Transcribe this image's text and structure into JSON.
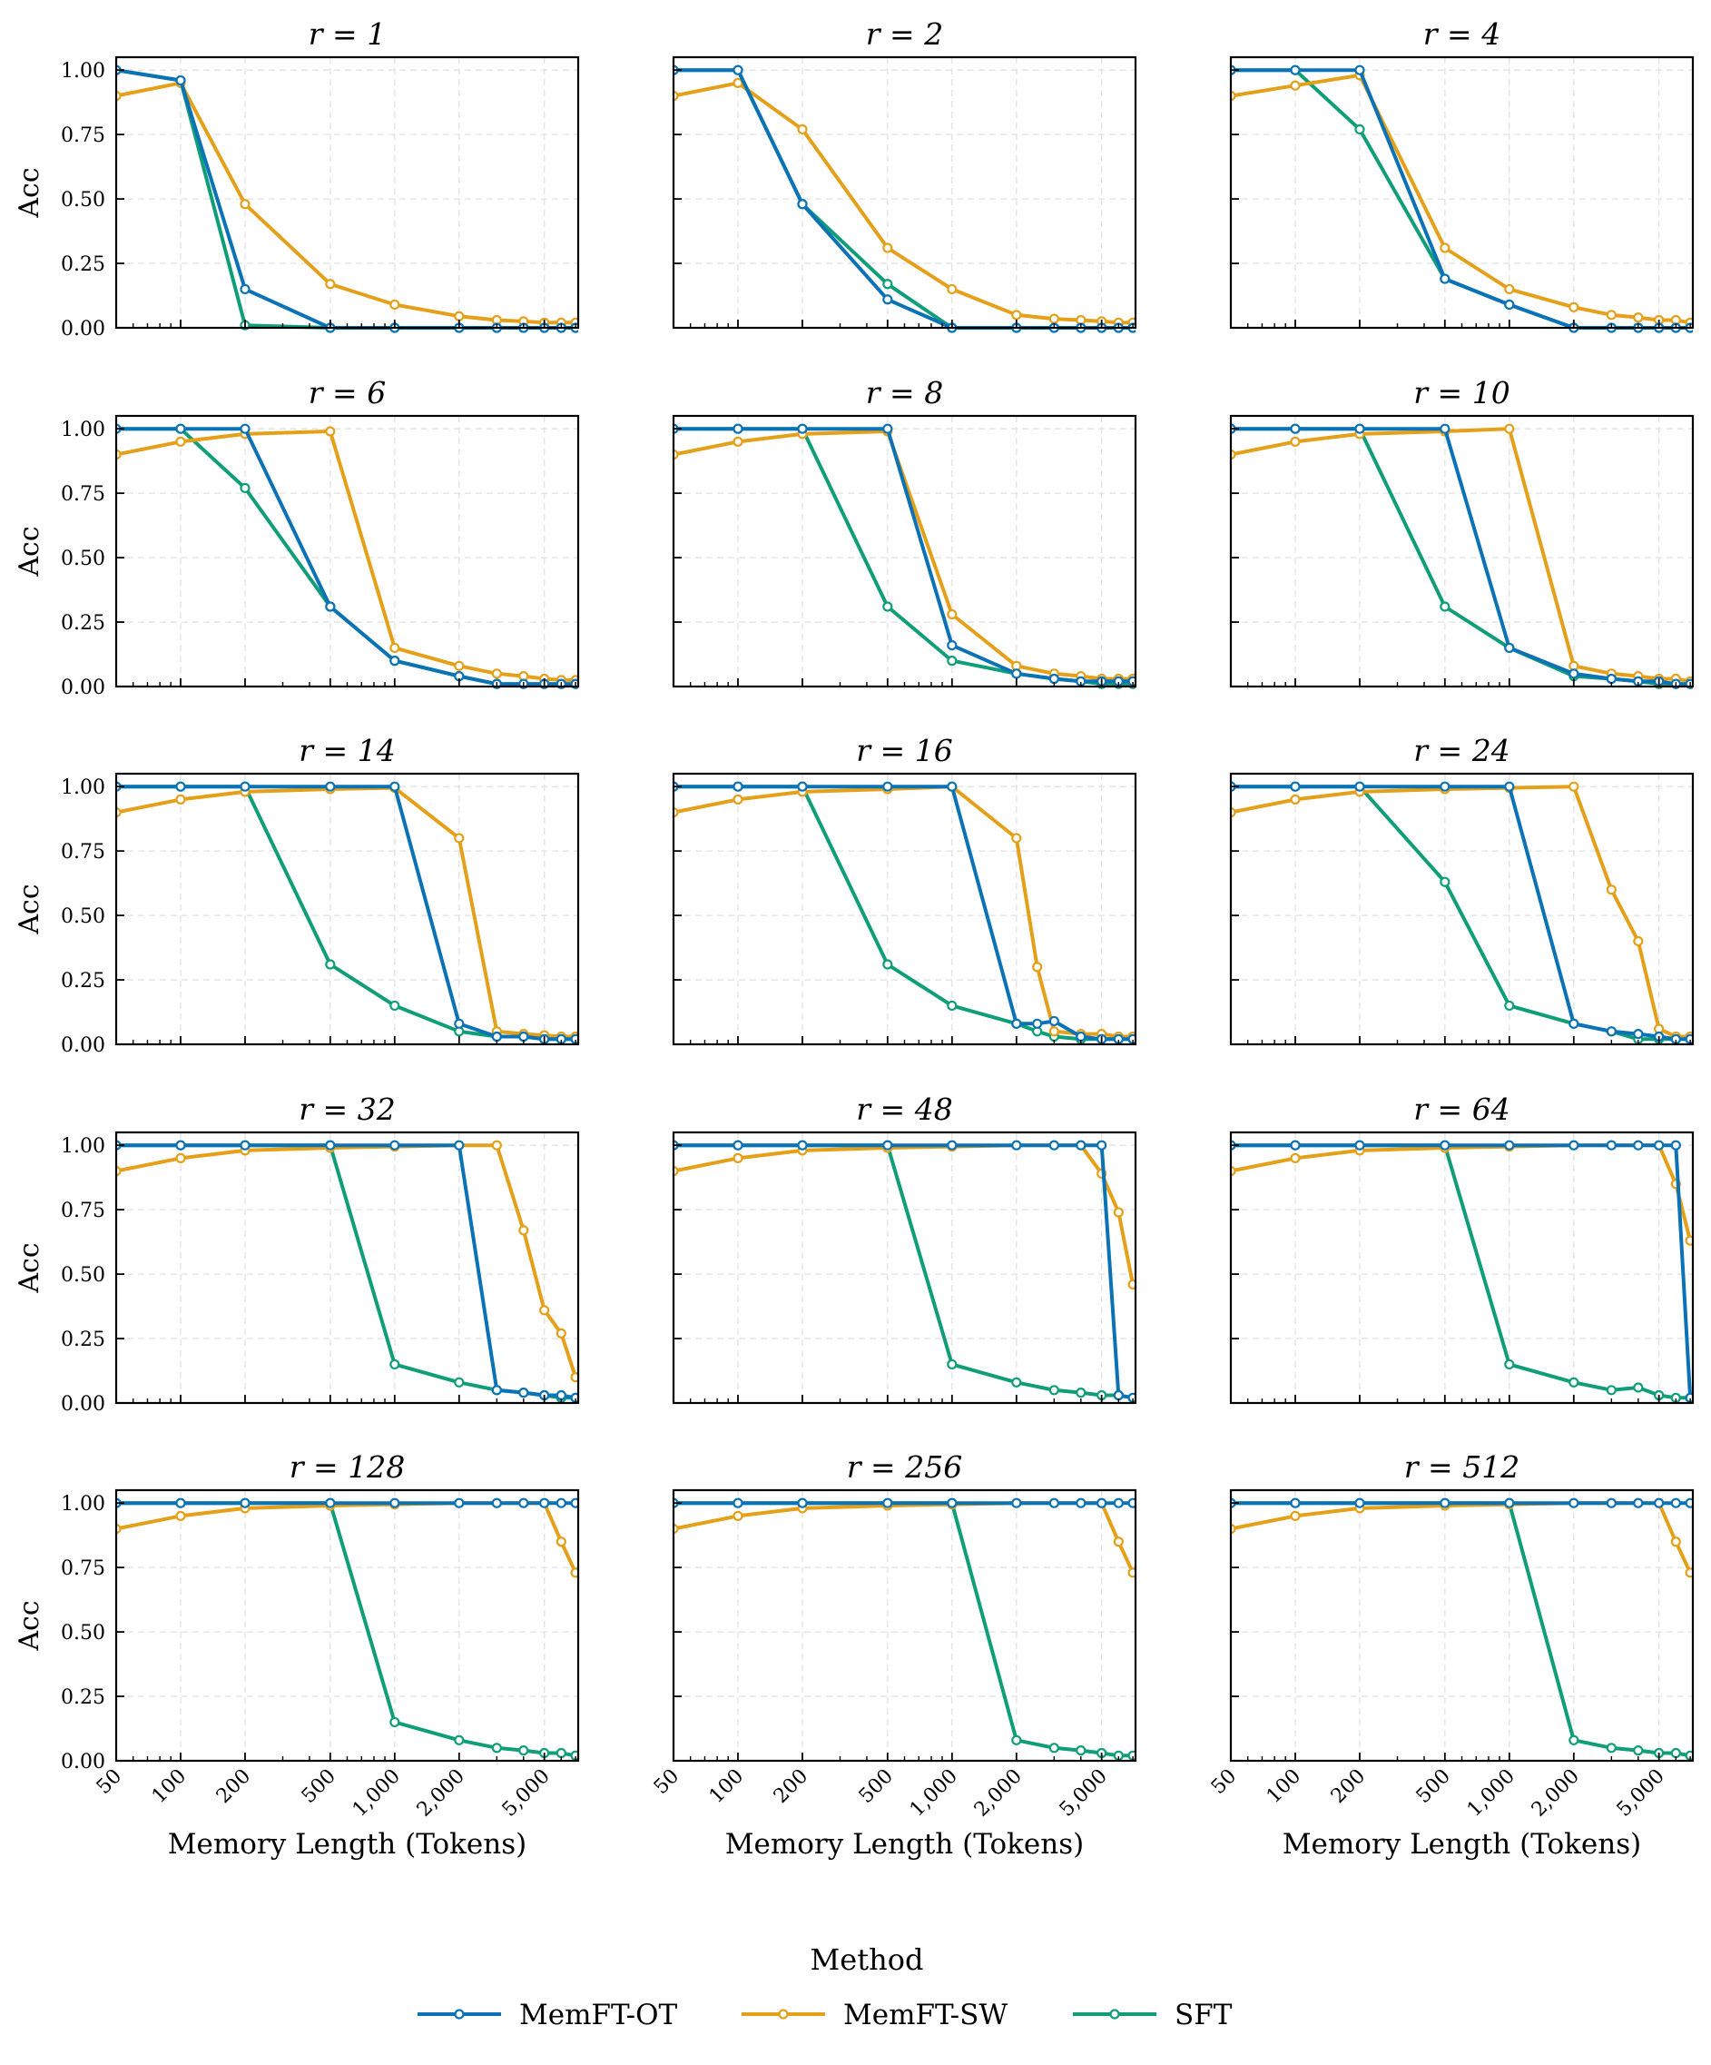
{
  "chart_data": {
    "type": "line",
    "xscale": "log",
    "xlim": [
      50,
      7200
    ],
    "ylim": [
      0,
      1.05
    ],
    "xticks": [
      50,
      100,
      200,
      500,
      1000,
      2000,
      5000
    ],
    "xticklabels": [
      "50",
      "100",
      "200",
      "500",
      "1,000",
      "2,000",
      "5,000"
    ],
    "yticks": [
      0,
      0.25,
      0.5,
      0.75,
      1.0
    ],
    "yticklabels": [
      "0.00",
      "0.25",
      "0.50",
      "0.75",
      "1.00"
    ],
    "xlabel": "Memory Length (Tokens)",
    "ylabel": "Acc",
    "grid": true,
    "legend": {
      "title": "Method",
      "position": "bottom-center",
      "items": [
        {
          "label": "MemFT-OT",
          "color": "#0b72b5"
        },
        {
          "label": "MemFT-SW",
          "color": "#e5a01a"
        },
        {
          "label": "SFT",
          "color": "#0f9e78"
        }
      ]
    },
    "panels": [
      {
        "title": "r = 1",
        "x": [
          50,
          100,
          200,
          500,
          1000,
          2000,
          3000,
          4000,
          5000,
          6000,
          7000
        ],
        "series": [
          {
            "name": "MemFT-OT",
            "values": [
              1.0,
              0.96,
              0.15,
              0.0,
              0.0,
              0.0,
              0.0,
              0.0,
              0.0,
              0.0,
              0.0
            ]
          },
          {
            "name": "MemFT-SW",
            "values": [
              0.9,
              0.95,
              0.48,
              0.17,
              0.09,
              0.045,
              0.03,
              0.025,
              0.02,
              0.02,
              0.02
            ]
          },
          {
            "name": "SFT",
            "values": [
              1.0,
              0.96,
              0.01,
              0.0,
              0.0,
              0.0,
              0.0,
              0.0,
              0.0,
              0.0,
              0.0
            ]
          }
        ]
      },
      {
        "title": "r = 2",
        "x": [
          50,
          100,
          200,
          500,
          1000,
          2000,
          3000,
          4000,
          5000,
          6000,
          7000
        ],
        "series": [
          {
            "name": "MemFT-OT",
            "values": [
              1.0,
              1.0,
              0.48,
              0.11,
              0.0,
              0.0,
              0.0,
              0.0,
              0.0,
              0.0,
              0.0
            ]
          },
          {
            "name": "MemFT-SW",
            "values": [
              0.9,
              0.95,
              0.77,
              0.31,
              0.15,
              0.05,
              0.035,
              0.03,
              0.025,
              0.02,
              0.02
            ]
          },
          {
            "name": "SFT",
            "values": [
              1.0,
              1.0,
              0.48,
              0.17,
              0.0,
              0.0,
              0.0,
              0.0,
              0.0,
              0.0,
              0.0
            ]
          }
        ]
      },
      {
        "title": "r = 4",
        "x": [
          50,
          100,
          200,
          500,
          1000,
          2000,
          3000,
          4000,
          5000,
          6000,
          7000
        ],
        "series": [
          {
            "name": "MemFT-OT",
            "values": [
              1.0,
              1.0,
              1.0,
              0.19,
              0.09,
              0.0,
              0.0,
              0.0,
              0.0,
              0.0,
              0.0
            ]
          },
          {
            "name": "MemFT-SW",
            "values": [
              0.9,
              0.94,
              0.98,
              0.31,
              0.15,
              0.08,
              0.05,
              0.04,
              0.03,
              0.03,
              0.02
            ]
          },
          {
            "name": "SFT",
            "values": [
              1.0,
              1.0,
              0.77,
              0.19,
              0.09,
              0.0,
              0.0,
              0.0,
              0.0,
              0.0,
              0.0
            ]
          }
        ]
      },
      {
        "title": "r = 6",
        "x": [
          50,
          100,
          200,
          500,
          1000,
          2000,
          3000,
          4000,
          5000,
          6000,
          7000
        ],
        "series": [
          {
            "name": "MemFT-OT",
            "values": [
              1.0,
              1.0,
              1.0,
              0.31,
              0.1,
              0.04,
              0.01,
              0.01,
              0.01,
              0.01,
              0.01
            ]
          },
          {
            "name": "MemFT-SW",
            "values": [
              0.9,
              0.95,
              0.98,
              0.99,
              0.15,
              0.08,
              0.05,
              0.04,
              0.03,
              0.025,
              0.025
            ]
          },
          {
            "name": "SFT",
            "values": [
              1.0,
              1.0,
              0.77,
              0.31,
              0.1,
              0.04,
              0.01,
              0.01,
              0.01,
              0.01,
              0.01
            ]
          }
        ]
      },
      {
        "title": "r = 8",
        "x": [
          50,
          100,
          200,
          500,
          1000,
          2000,
          3000,
          4000,
          5000,
          6000,
          7000
        ],
        "series": [
          {
            "name": "MemFT-OT",
            "values": [
              1.0,
              1.0,
              1.0,
              1.0,
              0.16,
              0.05,
              0.03,
              0.02,
              0.02,
              0.02,
              0.02
            ]
          },
          {
            "name": "MemFT-SW",
            "values": [
              0.9,
              0.95,
              0.98,
              0.99,
              0.28,
              0.08,
              0.05,
              0.04,
              0.03,
              0.03,
              0.03
            ]
          },
          {
            "name": "SFT",
            "values": [
              1.0,
              1.0,
              1.0,
              0.31,
              0.1,
              0.05,
              0.03,
              0.02,
              0.01,
              0.01,
              0.01
            ]
          }
        ]
      },
      {
        "title": "r = 10",
        "x": [
          50,
          100,
          200,
          500,
          1000,
          2000,
          3000,
          4000,
          5000,
          6000,
          7000
        ],
        "series": [
          {
            "name": "MemFT-OT",
            "values": [
              1.0,
              1.0,
              1.0,
              1.0,
              0.15,
              0.05,
              0.03,
              0.02,
              0.02,
              0.01,
              0.01
            ]
          },
          {
            "name": "MemFT-SW",
            "values": [
              0.9,
              0.95,
              0.98,
              0.99,
              1.0,
              0.08,
              0.05,
              0.04,
              0.03,
              0.03,
              0.02
            ]
          },
          {
            "name": "SFT",
            "values": [
              1.0,
              1.0,
              1.0,
              0.31,
              0.15,
              0.04,
              0.03,
              0.02,
              0.01,
              0.01,
              0.01
            ]
          }
        ]
      },
      {
        "title": "r = 14",
        "x": [
          50,
          100,
          200,
          500,
          1000,
          2000,
          3000,
          4000,
          5000,
          6000,
          7000
        ],
        "series": [
          {
            "name": "MemFT-OT",
            "values": [
              1.0,
              1.0,
              1.0,
              1.0,
              1.0,
              0.08,
              0.03,
              0.03,
              0.02,
              0.02,
              0.02
            ]
          },
          {
            "name": "MemFT-SW",
            "values": [
              0.9,
              0.95,
              0.98,
              0.99,
              0.995,
              0.8,
              0.05,
              0.04,
              0.035,
              0.03,
              0.03
            ]
          },
          {
            "name": "SFT",
            "values": [
              1.0,
              1.0,
              1.0,
              0.31,
              0.15,
              0.05,
              0.03,
              0.03,
              0.02,
              0.02,
              0.02
            ]
          }
        ]
      },
      {
        "title": "r = 16",
        "x": [
          50,
          100,
          200,
          500,
          1000,
          2000,
          2500,
          3000,
          4000,
          5000,
          6000,
          7000
        ],
        "series": [
          {
            "name": "MemFT-OT",
            "values": [
              1.0,
              1.0,
              1.0,
              1.0,
              1.0,
              0.08,
              0.08,
              0.09,
              0.03,
              0.02,
              0.02,
              0.02
            ]
          },
          {
            "name": "MemFT-SW",
            "values": [
              0.9,
              0.95,
              0.98,
              0.99,
              1.0,
              0.8,
              0.3,
              0.05,
              0.04,
              0.04,
              0.03,
              0.03
            ]
          },
          {
            "name": "SFT",
            "values": [
              1.0,
              1.0,
              1.0,
              0.31,
              0.15,
              0.08,
              0.05,
              0.03,
              0.02,
              0.02,
              0.02,
              0.02
            ]
          }
        ]
      },
      {
        "title": "r = 24",
        "x": [
          50,
          100,
          200,
          500,
          1000,
          2000,
          3000,
          4000,
          5000,
          6000,
          7000
        ],
        "series": [
          {
            "name": "MemFT-OT",
            "values": [
              1.0,
              1.0,
              1.0,
              1.0,
              1.0,
              0.08,
              0.05,
              0.04,
              0.03,
              0.02,
              0.02
            ]
          },
          {
            "name": "MemFT-SW",
            "values": [
              0.9,
              0.95,
              0.98,
              0.99,
              0.995,
              1.0,
              0.6,
              0.4,
              0.06,
              0.03,
              0.03
            ]
          },
          {
            "name": "SFT",
            "values": [
              1.0,
              1.0,
              1.0,
              0.63,
              0.15,
              0.08,
              0.05,
              0.02,
              0.02,
              0.02,
              0.02
            ]
          }
        ]
      },
      {
        "title": "r = 32",
        "x": [
          50,
          100,
          200,
          500,
          1000,
          2000,
          3000,
          4000,
          5000,
          6000,
          7000
        ],
        "series": [
          {
            "name": "MemFT-OT",
            "values": [
              1.0,
              1.0,
              1.0,
              1.0,
              1.0,
              1.0,
              0.05,
              0.04,
              0.03,
              0.03,
              0.02
            ]
          },
          {
            "name": "MemFT-SW",
            "values": [
              0.9,
              0.95,
              0.98,
              0.99,
              0.995,
              1.0,
              1.0,
              0.67,
              0.36,
              0.27,
              0.1
            ]
          },
          {
            "name": "SFT",
            "values": [
              1.0,
              1.0,
              1.0,
              1.0,
              0.15,
              0.08,
              0.05,
              0.04,
              0.03,
              0.02,
              0.02
            ]
          }
        ]
      },
      {
        "title": "r = 48",
        "x": [
          50,
          100,
          200,
          500,
          1000,
          2000,
          3000,
          4000,
          5000,
          6000,
          7000
        ],
        "series": [
          {
            "name": "MemFT-OT",
            "values": [
              1.0,
              1.0,
              1.0,
              1.0,
              1.0,
              1.0,
              1.0,
              1.0,
              1.0,
              0.03,
              0.02
            ]
          },
          {
            "name": "MemFT-SW",
            "values": [
              0.9,
              0.95,
              0.98,
              0.99,
              0.995,
              1.0,
              1.0,
              1.0,
              0.89,
              0.74,
              0.46
            ]
          },
          {
            "name": "SFT",
            "values": [
              1.0,
              1.0,
              1.0,
              1.0,
              0.15,
              0.08,
              0.05,
              0.04,
              0.03,
              0.03,
              0.02
            ]
          }
        ]
      },
      {
        "title": "r = 64",
        "x": [
          50,
          100,
          200,
          500,
          1000,
          2000,
          3000,
          4000,
          5000,
          6000,
          7000
        ],
        "series": [
          {
            "name": "MemFT-OT",
            "values": [
              1.0,
              1.0,
              1.0,
              1.0,
              1.0,
              1.0,
              1.0,
              1.0,
              1.0,
              1.0,
              0.02
            ]
          },
          {
            "name": "MemFT-SW",
            "values": [
              0.9,
              0.95,
              0.98,
              0.99,
              0.995,
              1.0,
              1.0,
              1.0,
              1.0,
              0.85,
              0.63
            ]
          },
          {
            "name": "SFT",
            "values": [
              1.0,
              1.0,
              1.0,
              1.0,
              0.15,
              0.08,
              0.05,
              0.06,
              0.03,
              0.02,
              0.02
            ]
          }
        ]
      },
      {
        "title": "r = 128",
        "x": [
          50,
          100,
          200,
          500,
          1000,
          2000,
          3000,
          4000,
          5000,
          6000,
          7000
        ],
        "series": [
          {
            "name": "MemFT-OT",
            "values": [
              1.0,
              1.0,
              1.0,
              1.0,
              1.0,
              1.0,
              1.0,
              1.0,
              1.0,
              1.0,
              1.0
            ]
          },
          {
            "name": "MemFT-SW",
            "values": [
              0.9,
              0.95,
              0.98,
              0.99,
              0.995,
              1.0,
              1.0,
              1.0,
              1.0,
              0.85,
              0.73
            ]
          },
          {
            "name": "SFT",
            "values": [
              1.0,
              1.0,
              1.0,
              1.0,
              0.15,
              0.08,
              0.05,
              0.04,
              0.03,
              0.03,
              0.02
            ]
          }
        ]
      },
      {
        "title": "r = 256",
        "x": [
          50,
          100,
          200,
          500,
          1000,
          2000,
          3000,
          4000,
          5000,
          6000,
          7000
        ],
        "series": [
          {
            "name": "MemFT-OT",
            "values": [
              1.0,
              1.0,
              1.0,
              1.0,
              1.0,
              1.0,
              1.0,
              1.0,
              1.0,
              1.0,
              1.0
            ]
          },
          {
            "name": "MemFT-SW",
            "values": [
              0.9,
              0.95,
              0.98,
              0.99,
              0.995,
              1.0,
              1.0,
              1.0,
              1.0,
              0.85,
              0.73
            ]
          },
          {
            "name": "SFT",
            "values": [
              1.0,
              1.0,
              1.0,
              1.0,
              1.0,
              0.08,
              0.05,
              0.04,
              0.03,
              0.02,
              0.02
            ]
          }
        ]
      },
      {
        "title": "r = 512",
        "x": [
          50,
          100,
          200,
          500,
          1000,
          2000,
          3000,
          4000,
          5000,
          6000,
          7000
        ],
        "series": [
          {
            "name": "MemFT-OT",
            "values": [
              1.0,
              1.0,
              1.0,
              1.0,
              1.0,
              1.0,
              1.0,
              1.0,
              1.0,
              1.0,
              1.0
            ]
          },
          {
            "name": "MemFT-SW",
            "values": [
              0.9,
              0.95,
              0.98,
              0.99,
              0.995,
              1.0,
              1.0,
              1.0,
              1.0,
              0.85,
              0.73
            ]
          },
          {
            "name": "SFT",
            "values": [
              1.0,
              1.0,
              1.0,
              1.0,
              1.0,
              0.08,
              0.05,
              0.04,
              0.03,
              0.03,
              0.02
            ]
          }
        ]
      }
    ]
  }
}
